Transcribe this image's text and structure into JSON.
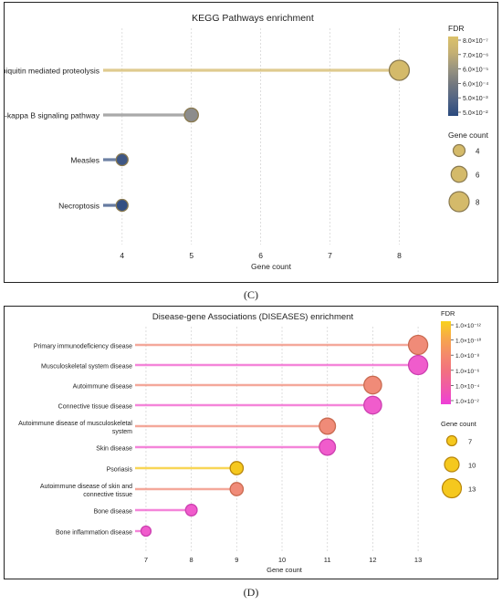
{
  "chart_data": [
    {
      "panel_label": "(C)",
      "type": "lollipop",
      "title": "KEGG Pathways enrichment",
      "xlabel": "Gene count",
      "ylabel": "",
      "xlim": [
        3.7,
        8.6
      ],
      "x_ticks": [
        "4",
        "5",
        "6",
        "7",
        "8"
      ],
      "categories": [
        "Ubiquitin mediated proteolysis",
        "NF-kappa B signaling pathway",
        "Measles",
        "Necroptosis"
      ],
      "values": [
        8,
        5,
        4,
        4
      ],
      "colors": [
        "#d4ba6a",
        "#8c8c8c",
        "#3e5785",
        "#334f82"
      ],
      "fdr_legend": {
        "title": "FDR",
        "labels": [
          "8.0×10⁻⁷",
          "7.0×10⁻⁶",
          "6.0×10⁻⁵",
          "6.0×10⁻⁴",
          "5.0×10⁻³",
          "5.0×10⁻²"
        ],
        "gradient": [
          "#dcc26a",
          "#c5b073",
          "#9a9580",
          "#73787f",
          "#4f6385",
          "#2a4a7e"
        ]
      },
      "size_legend": {
        "title": "Gene count",
        "labels": [
          "4",
          "6",
          "8"
        ],
        "values": [
          4,
          6,
          8
        ],
        "color": "#d4ba6a"
      }
    },
    {
      "panel_label": "(D)",
      "type": "lollipop",
      "title": "Disease-gene Associations (DISEASES) enrichment",
      "xlabel": "Gene count",
      "ylabel": "",
      "xlim": [
        6.8,
        13.3
      ],
      "x_ticks": [
        "7",
        "8",
        "9",
        "10",
        "11",
        "12",
        "13"
      ],
      "categories": [
        "Primary immunodeficiency disease",
        "Musculoskeletal system disease",
        "Autoimmune disease",
        "Connective tissue disease",
        "Autoimmune disease of musculoskeletal system",
        "Skin disease",
        "Psoriasis",
        "Autoimmune disease of skin and connective tissue",
        "Bone disease",
        "Bone inflammation disease"
      ],
      "values": [
        13,
        13,
        12,
        12,
        11,
        11,
        9,
        9,
        8,
        7
      ],
      "colors": [
        "#f08b78",
        "#f05ccc",
        "#f08b78",
        "#f05ccc",
        "#f08b78",
        "#f05ccc",
        "#f5c81e",
        "#f08b78",
        "#f05ccc",
        "#f05ccc"
      ],
      "fdr_legend": {
        "title": "FDR",
        "labels": [
          "1.0×10⁻¹²",
          "1.0×10⁻¹⁰",
          "1.0×10⁻⁸",
          "1.0×10⁻⁶",
          "1.0×10⁻⁴",
          "1.0×10⁻²"
        ],
        "gradient": [
          "#f8d21c",
          "#f7a84a",
          "#f48a6a",
          "#f27080",
          "#f05aa8",
          "#ee3ed8"
        ]
      },
      "size_legend": {
        "title": "Gene count",
        "labels": [
          "7",
          "10",
          "13"
        ],
        "values": [
          7,
          10,
          13
        ],
        "color": "#f5c81e"
      }
    }
  ]
}
